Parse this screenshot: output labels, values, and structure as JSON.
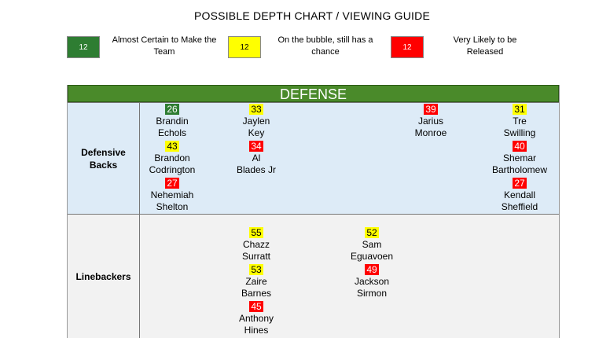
{
  "title": "POSSIBLE DEPTH CHART / VIEWING GUIDE",
  "key": {
    "green": {
      "number": "12",
      "label": "Almost Certain to Make the Team",
      "color": "#2e7d32"
    },
    "yellow": {
      "number": "12",
      "label": "On the bubble, still has a chance",
      "color": "#ffff00"
    },
    "red": {
      "number": "12",
      "label": "Very Likely to be Released",
      "color": "#ff0000"
    }
  },
  "section_header": "DEFENSE",
  "rows": {
    "defensive_backs": {
      "label": "Defensive Backs",
      "players": [
        {
          "number": "26",
          "status": "green",
          "first": "Brandin",
          "last": "Echols"
        },
        {
          "number": "43",
          "status": "yellow",
          "first": "Brandon",
          "last": "Codrington"
        },
        {
          "number": "27",
          "status": "red",
          "first": "Nehemiah",
          "last": "Shelton"
        },
        {
          "number": "33",
          "status": "yellow",
          "first": "Jaylen",
          "last": "Key"
        },
        {
          "number": "34",
          "status": "red",
          "first": "Al",
          "last": "Blades Jr"
        },
        {
          "number": "39",
          "status": "red",
          "first": "Jarius",
          "last": "Monroe"
        },
        {
          "number": "31",
          "status": "yellow",
          "first": "Tre",
          "last": "Swilling"
        },
        {
          "number": "40",
          "status": "red",
          "first": "Shemar",
          "last": "Bartholomew"
        },
        {
          "number": "27",
          "status": "red",
          "first": "Kendall",
          "last": "Sheffield"
        }
      ]
    },
    "linebackers": {
      "label": "Linebackers",
      "players": [
        {
          "number": "55",
          "status": "yellow",
          "first": "Chazz",
          "last": "Surratt"
        },
        {
          "number": "53",
          "status": "yellow",
          "first": "Zaire",
          "last": "Barnes"
        },
        {
          "number": "45",
          "status": "red",
          "first": "Anthony",
          "last": "Hines"
        },
        {
          "number": "52",
          "status": "yellow",
          "first": "Sam",
          "last": "Eguavoen"
        },
        {
          "number": "49",
          "status": "red",
          "first": "Jackson",
          "last": "Sirmon"
        }
      ]
    }
  }
}
